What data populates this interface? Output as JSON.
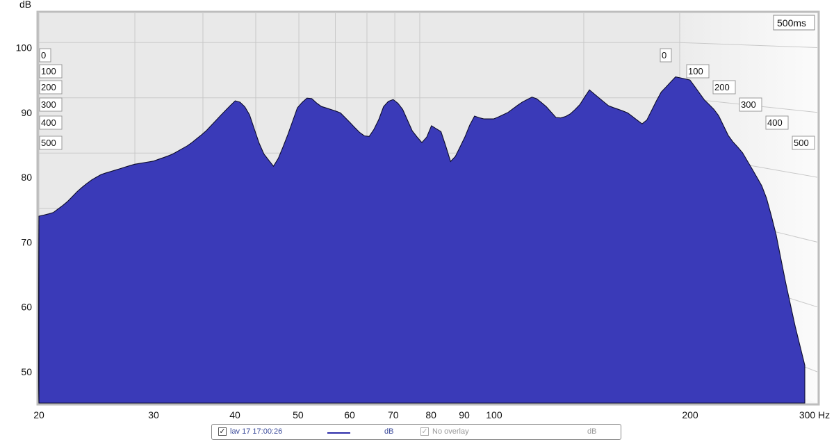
{
  "chart_data": {
    "type": "area",
    "subtype": "waterfall",
    "ylabel": "dB",
    "xlabel": "Hz",
    "y_ticks": [
      50,
      60,
      70,
      80,
      90,
      100
    ],
    "x_ticks": [
      20,
      30,
      40,
      50,
      60,
      70,
      80,
      90,
      100,
      200,
      "300 Hz"
    ],
    "time_ticks_ms": [
      "0",
      "100",
      "200",
      "300",
      "400",
      "500"
    ],
    "depth_label": "500ms",
    "ylim": [
      45,
      105
    ],
    "xlim": [
      20,
      300
    ],
    "x_scale": "log",
    "fill_color": "#3a3ab8",
    "front_slice_db": {
      "freqs": [
        20,
        21,
        22,
        23,
        24,
        25,
        26,
        28,
        30,
        32,
        34,
        36,
        38,
        40,
        41,
        42,
        44,
        46,
        48,
        50,
        52,
        54,
        56,
        58,
        60,
        62,
        64,
        66,
        68,
        70,
        72,
        75,
        78,
        80,
        83,
        86,
        90,
        93,
        96,
        100,
        105,
        110,
        115,
        120,
        125,
        130,
        135,
        140,
        150,
        160,
        170,
        180,
        190,
        200,
        210,
        220,
        230,
        240,
        250,
        260,
        270,
        280,
        290,
        300
      ],
      "db": [
        74,
        74.5,
        76,
        78,
        79.5,
        80.5,
        81,
        82,
        82.5,
        83.5,
        85,
        87,
        89.5,
        91.8,
        91.5,
        90,
        84,
        81.5,
        86,
        91,
        92.5,
        91,
        90.5,
        90,
        88.5,
        87,
        86,
        88,
        91.5,
        92,
        91,
        87,
        85,
        88,
        87,
        82,
        86,
        89.5,
        89,
        89,
        90,
        91.5,
        92.5,
        91,
        89,
        89.5,
        91,
        93.5,
        91,
        90,
        88,
        93,
        95.5,
        95,
        92,
        90,
        86,
        84,
        81,
        78,
        72,
        64,
        57,
        51
      ]
    },
    "slices": 44
  },
  "legend": {
    "date": "lav 17 17:00:26",
    "unit1": "dB",
    "overlay": "No overlay",
    "unit2": "dB"
  }
}
